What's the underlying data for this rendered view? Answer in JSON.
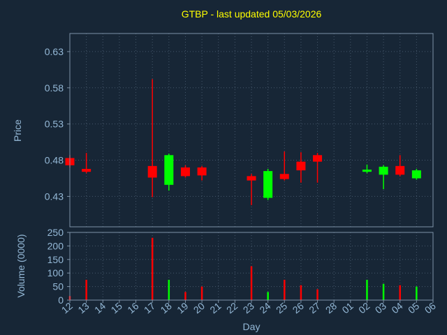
{
  "title": "GTBP - last updated 05/03/2026",
  "colors": {
    "background": "#172636",
    "text": "#94b8d6",
    "title": "#ffff00",
    "grid": "#46586c",
    "frame": "#7e93a8",
    "up": "#00ff00",
    "down": "#ff0000"
  },
  "price_axis": {
    "label": "Price",
    "ticks": [
      0.43,
      0.48,
      0.53,
      0.58,
      0.63
    ],
    "ylim": [
      0.388,
      0.655
    ]
  },
  "volume_axis": {
    "label": "Volume (0000)",
    "ticks": [
      0,
      50,
      100,
      150,
      200,
      250
    ],
    "ylim": [
      0,
      250
    ]
  },
  "x_axis": {
    "label": "Day",
    "categories": [
      "12",
      "13",
      "14",
      "15",
      "16",
      "17",
      "18",
      "19",
      "20",
      "21",
      "22",
      "23",
      "24",
      "25",
      "26",
      "27",
      "28",
      "01",
      "02",
      "03",
      "04",
      "05",
      "06"
    ]
  },
  "chart_data": {
    "type": "candlestick",
    "title": "GTBP - last updated 05/03/2026",
    "xlabel": "Day",
    "ylabel": "Price",
    "y2label": "Volume (0000)",
    "price_ylim": [
      0.388,
      0.655
    ],
    "volume_ylim": [
      0,
      250
    ],
    "grid": "dotted",
    "categories": [
      "12",
      "13",
      "14",
      "15",
      "16",
      "17",
      "18",
      "19",
      "20",
      "21",
      "22",
      "23",
      "24",
      "25",
      "26",
      "27",
      "28",
      "01",
      "02",
      "03",
      "04",
      "05",
      "06"
    ],
    "series": [
      {
        "day": "12",
        "open": 0.483,
        "high": 0.487,
        "low": 0.47,
        "close": 0.473,
        "volume": 15
      },
      {
        "day": "13",
        "open": 0.468,
        "high": 0.49,
        "low": 0.462,
        "close": 0.464,
        "volume": 75
      },
      {
        "day": "17",
        "open": 0.472,
        "high": 0.592,
        "low": 0.429,
        "close": 0.456,
        "volume": 230
      },
      {
        "day": "18",
        "open": 0.446,
        "high": 0.489,
        "low": 0.438,
        "close": 0.487,
        "volume": 75
      },
      {
        "day": "19",
        "open": 0.47,
        "high": 0.473,
        "low": 0.456,
        "close": 0.458,
        "volume": 30
      },
      {
        "day": "20",
        "open": 0.47,
        "high": 0.472,
        "low": 0.452,
        "close": 0.459,
        "volume": 50
      },
      {
        "day": "23",
        "open": 0.458,
        "high": 0.461,
        "low": 0.418,
        "close": 0.452,
        "volume": 125
      },
      {
        "day": "24",
        "open": 0.428,
        "high": 0.468,
        "low": 0.425,
        "close": 0.465,
        "volume": 30
      },
      {
        "day": "25",
        "open": 0.461,
        "high": 0.492,
        "low": 0.452,
        "close": 0.454,
        "volume": 75
      },
      {
        "day": "26",
        "open": 0.478,
        "high": 0.491,
        "low": 0.449,
        "close": 0.466,
        "volume": 55
      },
      {
        "day": "27",
        "open": 0.487,
        "high": 0.49,
        "low": 0.449,
        "close": 0.478,
        "volume": 40
      },
      {
        "day": "02",
        "open": 0.464,
        "high": 0.474,
        "low": 0.462,
        "close": 0.467,
        "volume": 75
      },
      {
        "day": "03",
        "open": 0.46,
        "high": 0.473,
        "low": 0.44,
        "close": 0.471,
        "volume": 60
      },
      {
        "day": "04",
        "open": 0.472,
        "high": 0.487,
        "low": 0.458,
        "close": 0.46,
        "volume": 55
      },
      {
        "day": "05",
        "open": 0.455,
        "high": 0.468,
        "low": 0.453,
        "close": 0.466,
        "volume": 50
      }
    ]
  }
}
